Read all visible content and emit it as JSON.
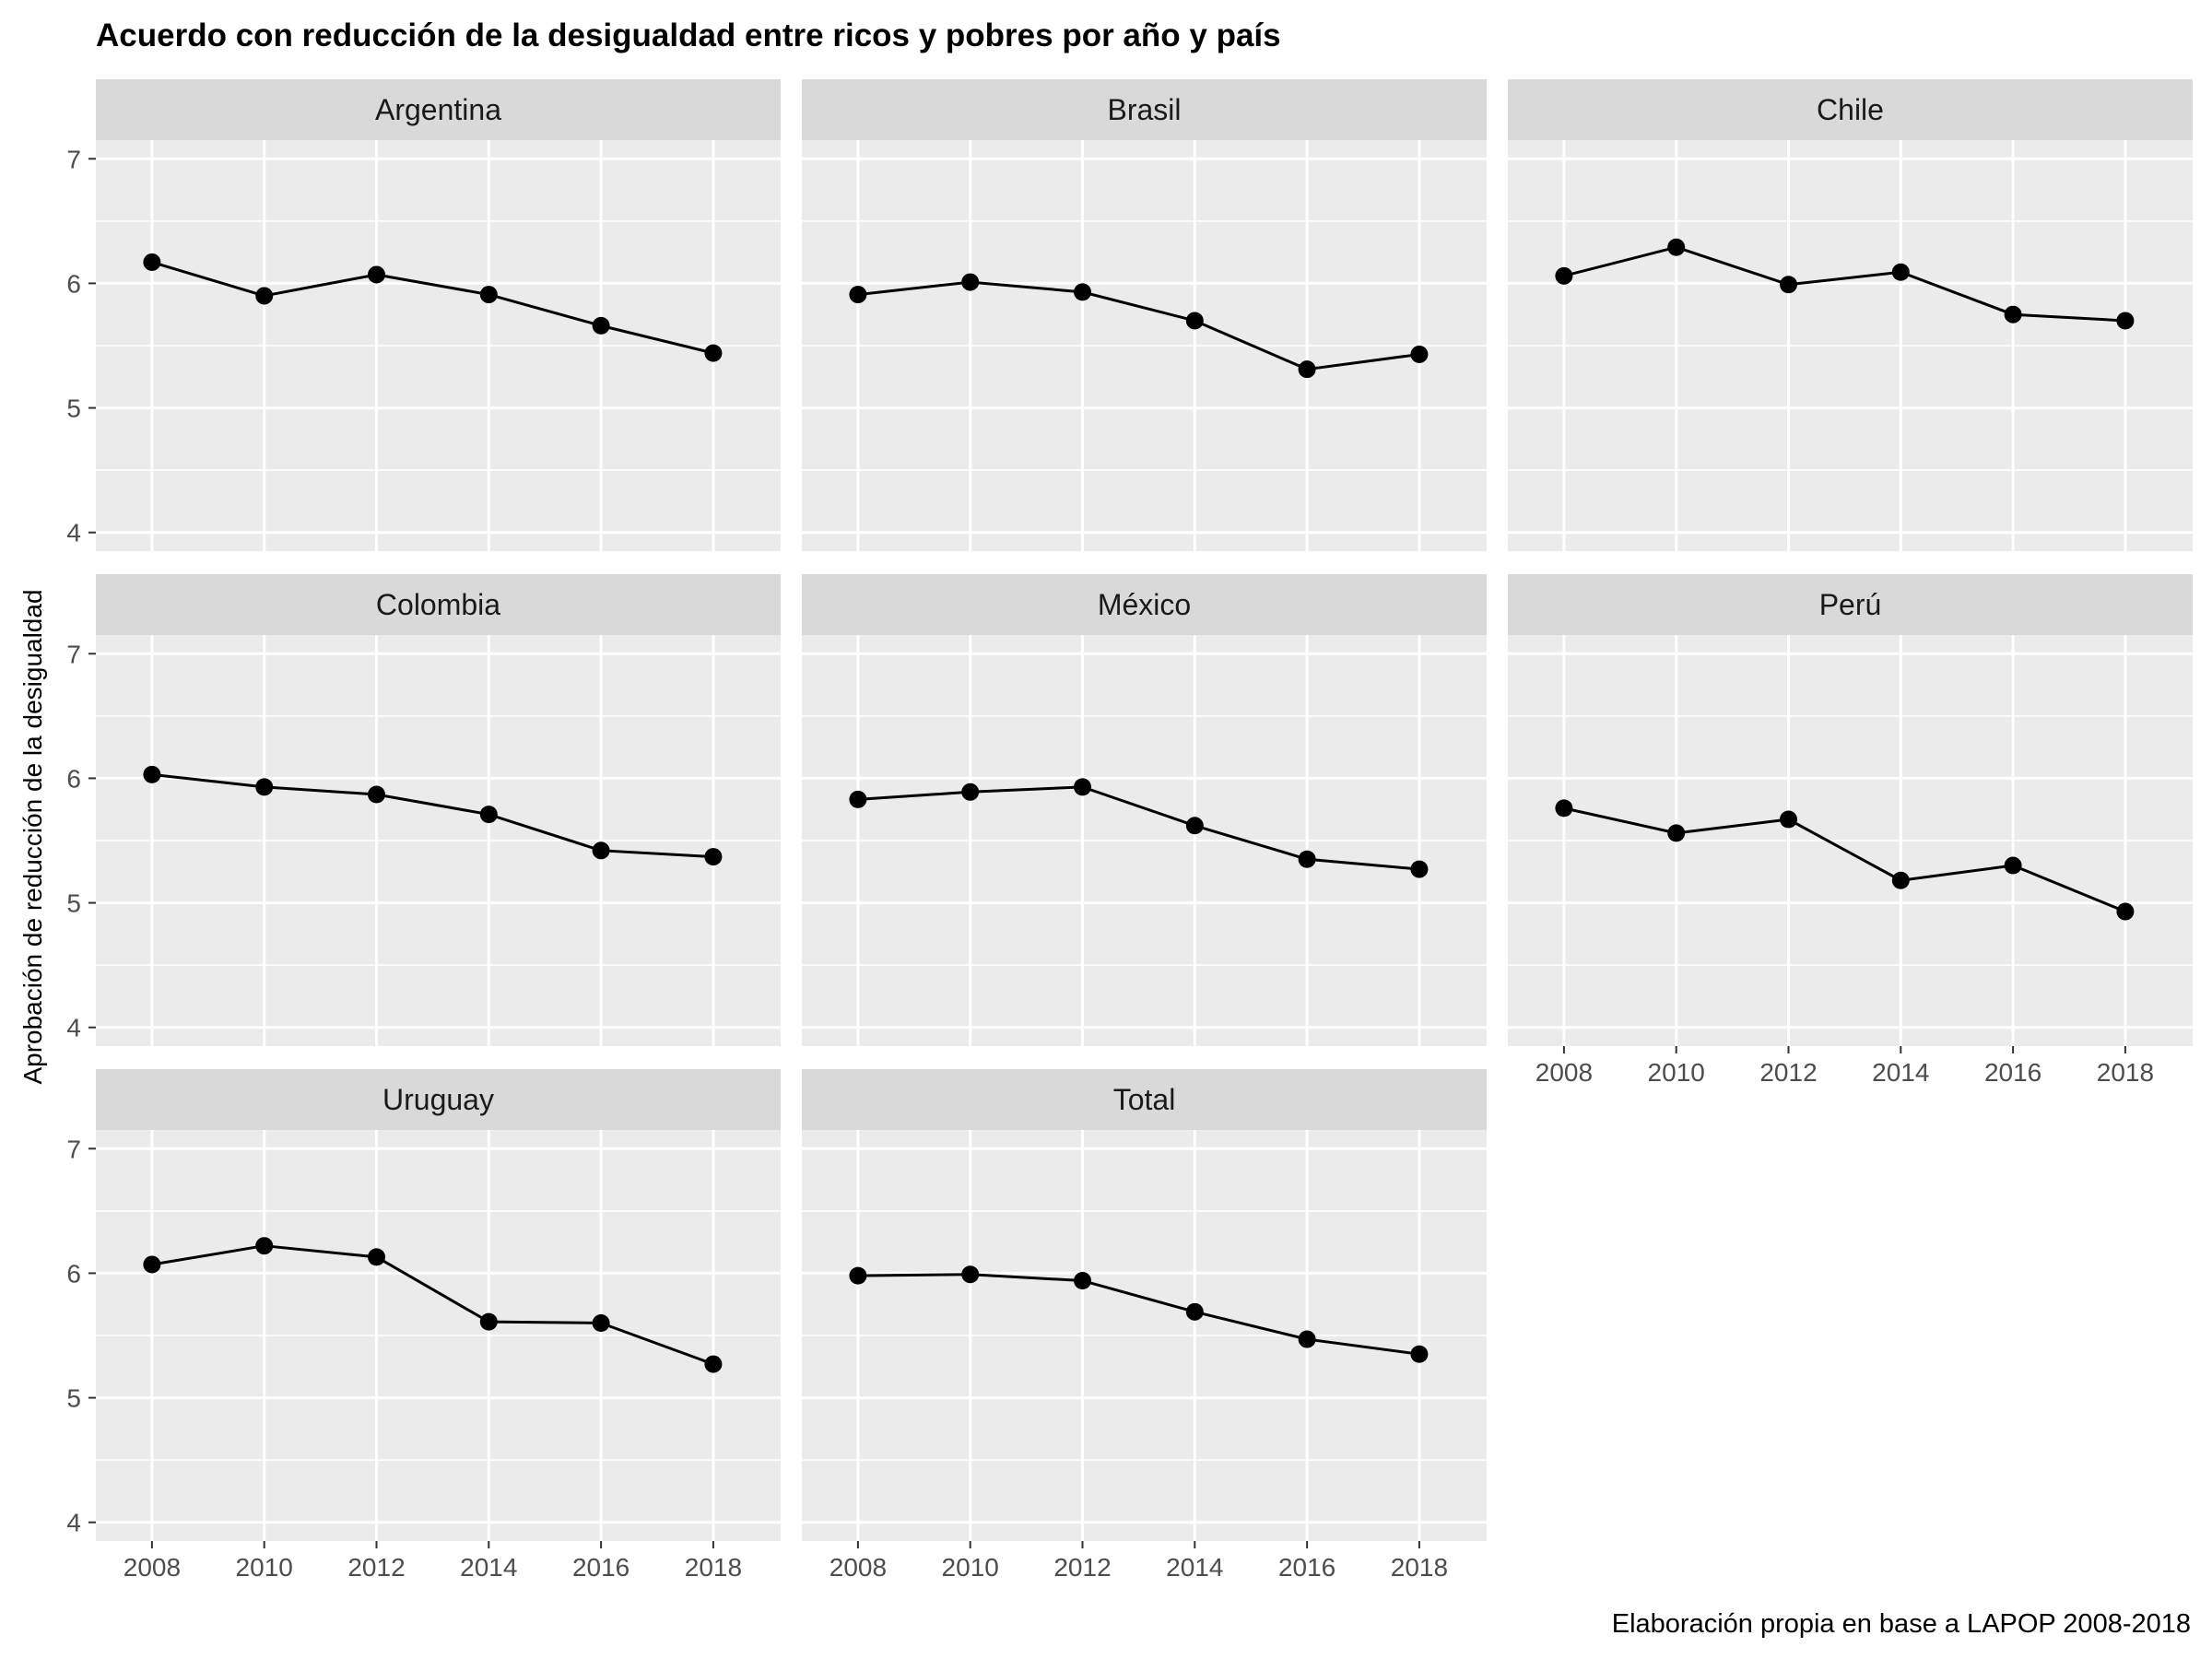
{
  "chart_data": {
    "type": "line",
    "title": "Acuerdo con reducción de la desigualdad entre ricos y pobres por año y país",
    "xlabel": "",
    "ylabel": "Aprobación de reducción de la desigualdad",
    "caption": "Elaboración propia en base a LAPOP 2008-2018",
    "x": [
      2008,
      2010,
      2012,
      2014,
      2016,
      2018
    ],
    "x_ticks": [
      "2008",
      "2010",
      "2012",
      "2014",
      "2016",
      "2018"
    ],
    "y_ticks": [
      "4",
      "5",
      "6",
      "7"
    ],
    "ylim": [
      3.85,
      7.15
    ],
    "xlim": [
      2007.0,
      2019.2
    ],
    "grid": true,
    "facets": [
      {
        "name": "Argentina",
        "values": [
          6.17,
          5.9,
          6.07,
          5.91,
          5.66,
          5.44
        ]
      },
      {
        "name": "Brasil",
        "values": [
          5.91,
          6.01,
          5.93,
          5.7,
          5.31,
          5.43
        ]
      },
      {
        "name": "Chile",
        "values": [
          6.06,
          6.29,
          5.99,
          6.09,
          5.75,
          5.7
        ]
      },
      {
        "name": "Colombia",
        "values": [
          6.03,
          5.93,
          5.87,
          5.71,
          5.42,
          5.37
        ]
      },
      {
        "name": "México",
        "values": [
          5.83,
          5.89,
          5.93,
          5.62,
          5.35,
          5.27
        ]
      },
      {
        "name": "Perú",
        "values": [
          5.76,
          5.56,
          5.67,
          5.18,
          5.3,
          4.93
        ]
      },
      {
        "name": "Uruguay",
        "values": [
          6.07,
          6.22,
          6.13,
          5.61,
          5.6,
          5.27
        ]
      },
      {
        "name": "Total",
        "values": [
          5.98,
          5.99,
          5.94,
          5.69,
          5.47,
          5.35
        ]
      }
    ]
  }
}
